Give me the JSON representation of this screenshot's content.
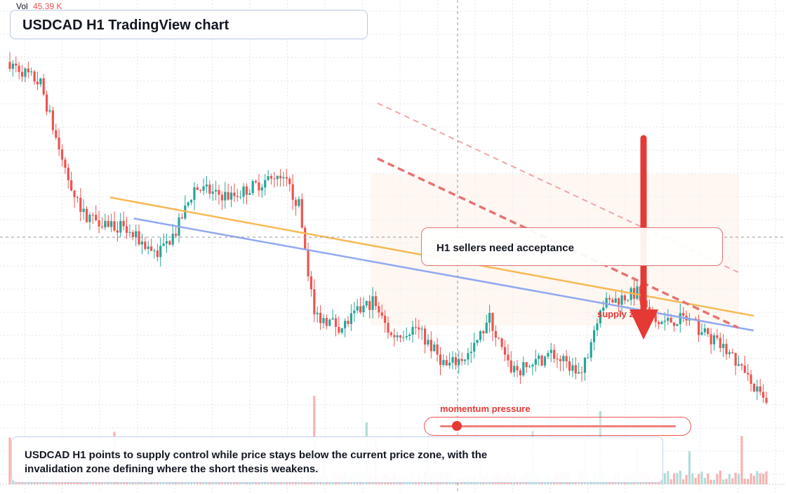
{
  "header": {
    "title": "USDCAD H1 TradingView chart"
  },
  "volume_legend": {
    "label": "Vol",
    "value": "45.39 K"
  },
  "callout": {
    "text": "H1 sellers need acceptance"
  },
  "annotations": {
    "supply_zone": "supply zone",
    "momentum": "momentum pressure",
    "momentum_level": 0.07
  },
  "summary": {
    "text": "USDCAD H1 points to supply control while price stays below the current price zone, with the invalidation zone defining where the short thesis weakens."
  },
  "colors": {
    "bull": "#26a69a",
    "bear": "#ef5350",
    "accent": "#e53935",
    "trend_orange": "#f7b955",
    "trend_blue": "#90a8f0"
  },
  "chart_data": {
    "type": "candlestick",
    "symbol": "USDCAD",
    "timeframe": "H1",
    "grid": true,
    "title": "",
    "xlabel": "",
    "ylabel": "",
    "legend": "none",
    "ylim": [
      0,
      100
    ],
    "x": [
      0,
      210
    ],
    "y_unit": "relative price, 0-100",
    "anchors": [
      [
        0,
        89
      ],
      [
        10,
        84
      ],
      [
        18,
        64
      ],
      [
        24,
        54
      ],
      [
        36,
        51
      ],
      [
        48,
        45
      ],
      [
        54,
        50
      ],
      [
        60,
        60
      ],
      [
        72,
        58
      ],
      [
        84,
        62
      ],
      [
        90,
        61
      ],
      [
        94,
        56
      ],
      [
        99,
        31
      ],
      [
        108,
        28
      ],
      [
        114,
        32
      ],
      [
        118,
        34
      ],
      [
        124,
        26
      ],
      [
        132,
        28
      ],
      [
        142,
        19
      ],
      [
        150,
        22
      ],
      [
        156,
        30
      ],
      [
        162,
        19
      ],
      [
        166,
        18
      ],
      [
        176,
        22
      ],
      [
        186,
        17
      ],
      [
        192,
        33
      ],
      [
        204,
        36
      ],
      [
        210,
        29
      ],
      [
        220,
        30
      ],
      [
        234,
        22
      ],
      [
        246,
        10
      ]
    ],
    "volume_scale": 45.39,
    "trendlines": [
      {
        "name": "",
        "from": [
          0,
          58
        ],
        "to": [
          180,
          36
        ]
      },
      {
        "name": "",
        "from": [
          28,
          53
        ],
        "to": [
          180,
          32
        ]
      }
    ],
    "zones": [
      {
        "label": "supply zone",
        "y_from": 30,
        "y_to": 60
      }
    ],
    "arrow": {
      "direction": "down"
    }
  }
}
